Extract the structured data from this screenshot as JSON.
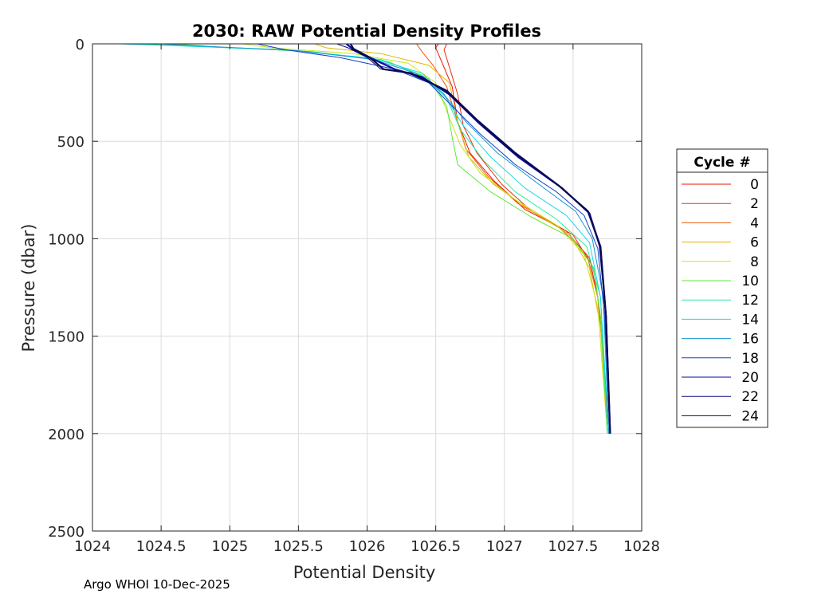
{
  "chart_data": {
    "type": "line",
    "title": "2030: RAW Potential Density Profiles",
    "xlabel": "Potential Density",
    "ylabel": "Pressure (dbar)",
    "xlim": [
      1024,
      1028
    ],
    "ylim": [
      0,
      2500
    ],
    "y_reversed": true,
    "grid": true,
    "x_ticks": [
      1024,
      1024.5,
      1025,
      1025.5,
      1026,
      1026.5,
      1027,
      1027.5,
      1028
    ],
    "x_tick_labels": [
      "1024",
      "1024.5",
      "1025",
      "1025.5",
      "1026",
      "1026.5",
      "1027",
      "1027.5",
      "1028"
    ],
    "y_ticks": [
      0,
      500,
      1000,
      1500,
      2000,
      2500
    ],
    "y_tick_labels": [
      "0",
      "500",
      "1000",
      "1500",
      "2000",
      "2500"
    ],
    "legend": {
      "title": "Cycle #",
      "placement": "right",
      "entries": [
        {
          "label": "0",
          "color": "#e8160a"
        },
        {
          "label": "2",
          "color": "#e83010"
        },
        {
          "label": "4",
          "color": "#e85a0a"
        },
        {
          "label": "6",
          "color": "#e6b400"
        },
        {
          "label": "8",
          "color": "#c4e81a"
        },
        {
          "label": "10",
          "color": "#5de83a"
        },
        {
          "label": "12",
          "color": "#2ee8a0"
        },
        {
          "label": "14",
          "color": "#16d8e8"
        },
        {
          "label": "16",
          "color": "#1696d0"
        },
        {
          "label": "18",
          "color": "#1440c8"
        },
        {
          "label": "20",
          "color": "#0a0aa0"
        },
        {
          "label": "22",
          "color": "#06067a"
        },
        {
          "label": "24",
          "color": "#0a0a50"
        }
      ]
    },
    "series": [
      {
        "name": "0",
        "color": "#e8160a",
        "points": [
          [
            1026.52,
            0
          ],
          [
            1026.5,
            20
          ],
          [
            1026.56,
            120
          ],
          [
            1026.62,
            220
          ],
          [
            1026.66,
            400
          ],
          [
            1026.75,
            560
          ],
          [
            1026.92,
            700
          ],
          [
            1027.15,
            850
          ],
          [
            1027.45,
            960
          ],
          [
            1027.62,
            1100
          ],
          [
            1027.68,
            1300
          ],
          [
            1027.72,
            1600
          ],
          [
            1027.76,
            2000
          ]
        ]
      },
      {
        "name": "2",
        "color": "#e83010",
        "points": [
          [
            1026.58,
            0
          ],
          [
            1026.56,
            30
          ],
          [
            1026.6,
            120
          ],
          [
            1026.66,
            260
          ],
          [
            1026.7,
            420
          ],
          [
            1026.8,
            560
          ],
          [
            1026.98,
            720
          ],
          [
            1027.2,
            860
          ],
          [
            1027.5,
            980
          ],
          [
            1027.65,
            1150
          ],
          [
            1027.7,
            1400
          ],
          [
            1027.73,
            1700
          ],
          [
            1027.76,
            2000
          ]
        ]
      },
      {
        "name": "4",
        "color": "#e85a0a",
        "points": [
          [
            1026.36,
            0
          ],
          [
            1026.4,
            40
          ],
          [
            1026.48,
            110
          ],
          [
            1026.58,
            220
          ],
          [
            1026.65,
            380
          ],
          [
            1026.72,
            540
          ],
          [
            1026.88,
            680
          ],
          [
            1027.1,
            820
          ],
          [
            1027.4,
            940
          ],
          [
            1027.6,
            1080
          ],
          [
            1027.68,
            1300
          ],
          [
            1027.72,
            1600
          ],
          [
            1027.75,
            2000
          ]
        ]
      },
      {
        "name": "6",
        "color": "#e6b400",
        "points": [
          [
            1025.62,
            0
          ],
          [
            1025.7,
            20
          ],
          [
            1026.1,
            50
          ],
          [
            1026.45,
            110
          ],
          [
            1026.6,
            200
          ],
          [
            1026.66,
            400
          ],
          [
            1026.74,
            580
          ],
          [
            1026.92,
            720
          ],
          [
            1027.2,
            860
          ],
          [
            1027.48,
            980
          ],
          [
            1027.62,
            1150
          ],
          [
            1027.7,
            1450
          ],
          [
            1027.75,
            2000
          ]
        ]
      },
      {
        "name": "8",
        "color": "#c4e81a",
        "points": [
          [
            1025.1,
            0
          ],
          [
            1025.3,
            20
          ],
          [
            1025.9,
            50
          ],
          [
            1026.3,
            100
          ],
          [
            1026.5,
            200
          ],
          [
            1026.6,
            380
          ],
          [
            1026.68,
            520
          ],
          [
            1026.82,
            660
          ],
          [
            1027.08,
            800
          ],
          [
            1027.38,
            930
          ],
          [
            1027.58,
            1080
          ],
          [
            1027.68,
            1350
          ],
          [
            1027.75,
            2000
          ]
        ]
      },
      {
        "name": "10",
        "color": "#5de83a",
        "points": [
          [
            1024.6,
            0
          ],
          [
            1024.9,
            15
          ],
          [
            1025.6,
            40
          ],
          [
            1026.15,
            90
          ],
          [
            1026.45,
            180
          ],
          [
            1026.58,
            320
          ],
          [
            1026.62,
            480
          ],
          [
            1026.66,
            620
          ],
          [
            1026.9,
            760
          ],
          [
            1027.2,
            890
          ],
          [
            1027.5,
            1000
          ],
          [
            1027.65,
            1150
          ],
          [
            1027.7,
            1400
          ],
          [
            1027.75,
            2000
          ]
        ]
      },
      {
        "name": "12",
        "color": "#2ee8a0",
        "points": [
          [
            1024.35,
            0
          ],
          [
            1024.7,
            12
          ],
          [
            1025.5,
            35
          ],
          [
            1026.1,
            80
          ],
          [
            1026.4,
            160
          ],
          [
            1026.58,
            280
          ],
          [
            1026.68,
            440
          ],
          [
            1026.85,
            600
          ],
          [
            1027.08,
            760
          ],
          [
            1027.38,
            900
          ],
          [
            1027.6,
            1040
          ],
          [
            1027.7,
            1300
          ],
          [
            1027.75,
            2000
          ]
        ]
      },
      {
        "name": "14",
        "color": "#16d8e8",
        "points": [
          [
            1024.2,
            0
          ],
          [
            1024.6,
            10
          ],
          [
            1025.4,
            30
          ],
          [
            1026.05,
            75
          ],
          [
            1026.4,
            150
          ],
          [
            1026.56,
            260
          ],
          [
            1026.7,
            420
          ],
          [
            1026.9,
            580
          ],
          [
            1027.15,
            740
          ],
          [
            1027.45,
            880
          ],
          [
            1027.62,
            1020
          ],
          [
            1027.7,
            1300
          ],
          [
            1027.76,
            2000
          ]
        ]
      },
      {
        "name": "16",
        "color": "#1696d0",
        "points": [
          [
            1024.5,
            0
          ],
          [
            1024.8,
            12
          ],
          [
            1025.5,
            35
          ],
          [
            1026.05,
            80
          ],
          [
            1026.35,
            150
          ],
          [
            1026.55,
            250
          ],
          [
            1026.72,
            400
          ],
          [
            1026.95,
            560
          ],
          [
            1027.25,
            720
          ],
          [
            1027.52,
            860
          ],
          [
            1027.64,
            1000
          ],
          [
            1027.72,
            1300
          ],
          [
            1027.76,
            2000
          ]
        ]
      },
      {
        "name": "18",
        "color": "#1440c8",
        "points": [
          [
            1025.2,
            0
          ],
          [
            1025.4,
            30
          ],
          [
            1025.8,
            70
          ],
          [
            1026.2,
            130
          ],
          [
            1026.45,
            200
          ],
          [
            1026.62,
            320
          ],
          [
            1026.82,
            460
          ],
          [
            1027.08,
            620
          ],
          [
            1027.38,
            760
          ],
          [
            1027.58,
            880
          ],
          [
            1027.68,
            1050
          ],
          [
            1027.73,
            1400
          ],
          [
            1027.77,
            2000
          ]
        ]
      },
      {
        "name": "20",
        "color": "#0a0aa0",
        "points": [
          [
            1025.85,
            0
          ],
          [
            1025.9,
            30
          ],
          [
            1026.05,
            80
          ],
          [
            1026.2,
            130
          ],
          [
            1026.4,
            170
          ],
          [
            1026.6,
            260
          ],
          [
            1026.82,
            410
          ],
          [
            1027.1,
            580
          ],
          [
            1027.42,
            740
          ],
          [
            1027.62,
            870
          ],
          [
            1027.7,
            1050
          ],
          [
            1027.74,
            1400
          ],
          [
            1027.77,
            2000
          ]
        ]
      },
      {
        "name": "22",
        "color": "#06067a",
        "points": [
          [
            1025.78,
            0
          ],
          [
            1025.86,
            20
          ],
          [
            1026.0,
            70
          ],
          [
            1026.1,
            130
          ],
          [
            1026.3,
            150
          ],
          [
            1026.55,
            230
          ],
          [
            1026.78,
            380
          ],
          [
            1027.05,
            550
          ],
          [
            1027.38,
            720
          ],
          [
            1027.6,
            850
          ],
          [
            1027.69,
            1030
          ],
          [
            1027.74,
            1400
          ],
          [
            1027.77,
            2000
          ]
        ]
      },
      {
        "name": "24",
        "color": "#0a0a50",
        "points": [
          [
            1025.88,
            0
          ],
          [
            1025.9,
            25
          ],
          [
            1026.02,
            70
          ],
          [
            1026.12,
            130
          ],
          [
            1026.32,
            150
          ],
          [
            1026.58,
            240
          ],
          [
            1026.8,
            390
          ],
          [
            1027.08,
            560
          ],
          [
            1027.4,
            730
          ],
          [
            1027.61,
            860
          ],
          [
            1027.7,
            1040
          ],
          [
            1027.74,
            1400
          ],
          [
            1027.77,
            2000
          ]
        ]
      }
    ]
  },
  "footer": "Argo WHOI 10-Dec-2025"
}
